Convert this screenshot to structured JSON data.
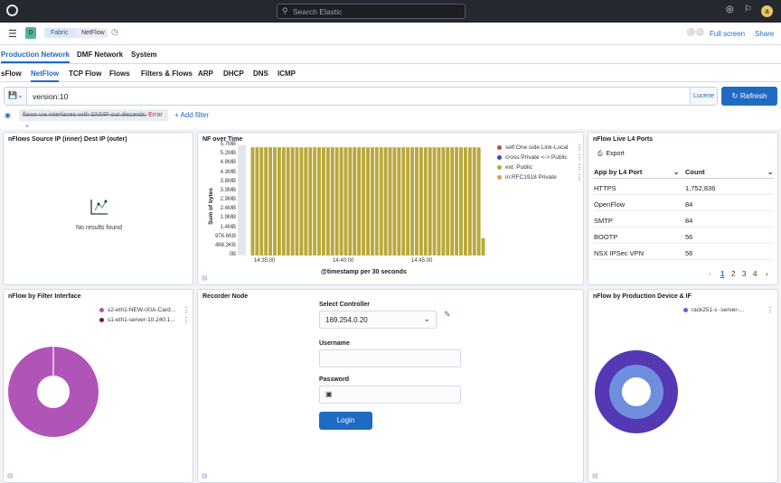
{
  "search": {
    "placeholder": "Search Elastic"
  },
  "header": {
    "space_initial": "D",
    "breadcrumbs": [
      "Fabric",
      "NetFlow"
    ],
    "full_screen": "Full screen",
    "share": "Share",
    "avatar_initial": "a"
  },
  "main_tabs": [
    "Production Network",
    "DMF Network",
    "System"
  ],
  "sub_tabs": [
    "sFlow",
    "NetFlow",
    "TCP Flow",
    "Flows",
    "Filters & Flows",
    "ARP",
    "DHCP",
    "DNS",
    "ICMP"
  ],
  "query": {
    "value": "version:10",
    "language": "Lucene",
    "refresh_label": "Refresh"
  },
  "filter": {
    "text": "flows via interfaces with SNMP out discards:",
    "error": "Error",
    "add_filter": "+ Add filter"
  },
  "panels": {
    "nflows_source": {
      "title": "nFlows Source IP (inner) Dest IP (outer)",
      "empty": "No results found"
    },
    "nf_over_time": {
      "title": "NF over Time"
    },
    "live_ports": {
      "title": "nFlow Live L4 Ports",
      "export": "Export",
      "col1": "App by L4 Port",
      "col2": "Count",
      "rows": [
        {
          "app": "HTTPS",
          "count": "1,752,836"
        },
        {
          "app": "OpenFlow",
          "count": "84"
        },
        {
          "app": "SMTP",
          "count": "84"
        },
        {
          "app": "BOOTP",
          "count": "56"
        },
        {
          "app": "NSX IPSec VPN",
          "count": "56"
        }
      ],
      "pages": [
        "1",
        "2",
        "3",
        "4"
      ]
    },
    "filter_interface": {
      "title": "nFlow by Filter Interface",
      "legend": [
        {
          "label": "s2-eth1-NEW-IXIA-Card...",
          "color": "#b054b8"
        },
        {
          "label": "s1-eth1-server-10.240.1...",
          "color": "#7a1d1d"
        }
      ]
    },
    "recorder": {
      "title": "Recorder Node",
      "select_label": "Select Controller",
      "select_value": "169.254.0.20",
      "username_label": "Username",
      "password_label": "Password",
      "login": "Login"
    },
    "prod_device": {
      "title": "nFlow by Production Device & IF",
      "legend": [
        {
          "label": "rack251-s        -server-...",
          "color": "#5a61d4"
        }
      ]
    }
  },
  "chart_data": {
    "type": "bar",
    "title": "",
    "xlabel": "@timestamp per 30 seconds",
    "ylabel": "Sum of bytes",
    "y_tick_labels": [
      "0B",
      "488.3KB",
      "976.6KB",
      "1.4MB",
      "1.9MB",
      "2.4MB",
      "2.9MB",
      "3.3MB",
      "3.8MB",
      "4.3MB",
      "4.8MB",
      "5.2MB",
      "5.7MB"
    ],
    "x_tick_labels": [
      "14:35:00",
      "14:40:00",
      "14:45:00"
    ],
    "ylim_mb": [
      0,
      5.7
    ],
    "legend": [
      {
        "label": "self:One side Link-Local",
        "color": "#bd4b4b"
      },
      {
        "label": "cross:Private <-> Public",
        "color": "#3b46c4"
      },
      {
        "label": "ext: Public",
        "color": "#b9a83b"
      },
      {
        "label": "in:RFC1918 Private",
        "color": "#d6a35c"
      }
    ],
    "series": [
      {
        "name": "ext: Public",
        "color": "#b9a83b",
        "values_mb": [
          5.6,
          5.6,
          5.6,
          5.6,
          5.6,
          5.6,
          5.6,
          5.6,
          5.6,
          5.6,
          5.6,
          5.6,
          5.6,
          5.6,
          5.6,
          5.6,
          5.6,
          5.6,
          5.6,
          5.6,
          5.6,
          5.6,
          5.6,
          5.6,
          5.6,
          5.6,
          5.6,
          5.6,
          5.6,
          5.6,
          5.6,
          5.6,
          5.6,
          5.6,
          5.6,
          5.6,
          5.6,
          5.6,
          5.6,
          5.6,
          5.6,
          5.6,
          5.6,
          5.6,
          5.6,
          5.6,
          5.6,
          5.6,
          5.6,
          5.6,
          5.6,
          5.6,
          0.9
        ]
      }
    ]
  }
}
